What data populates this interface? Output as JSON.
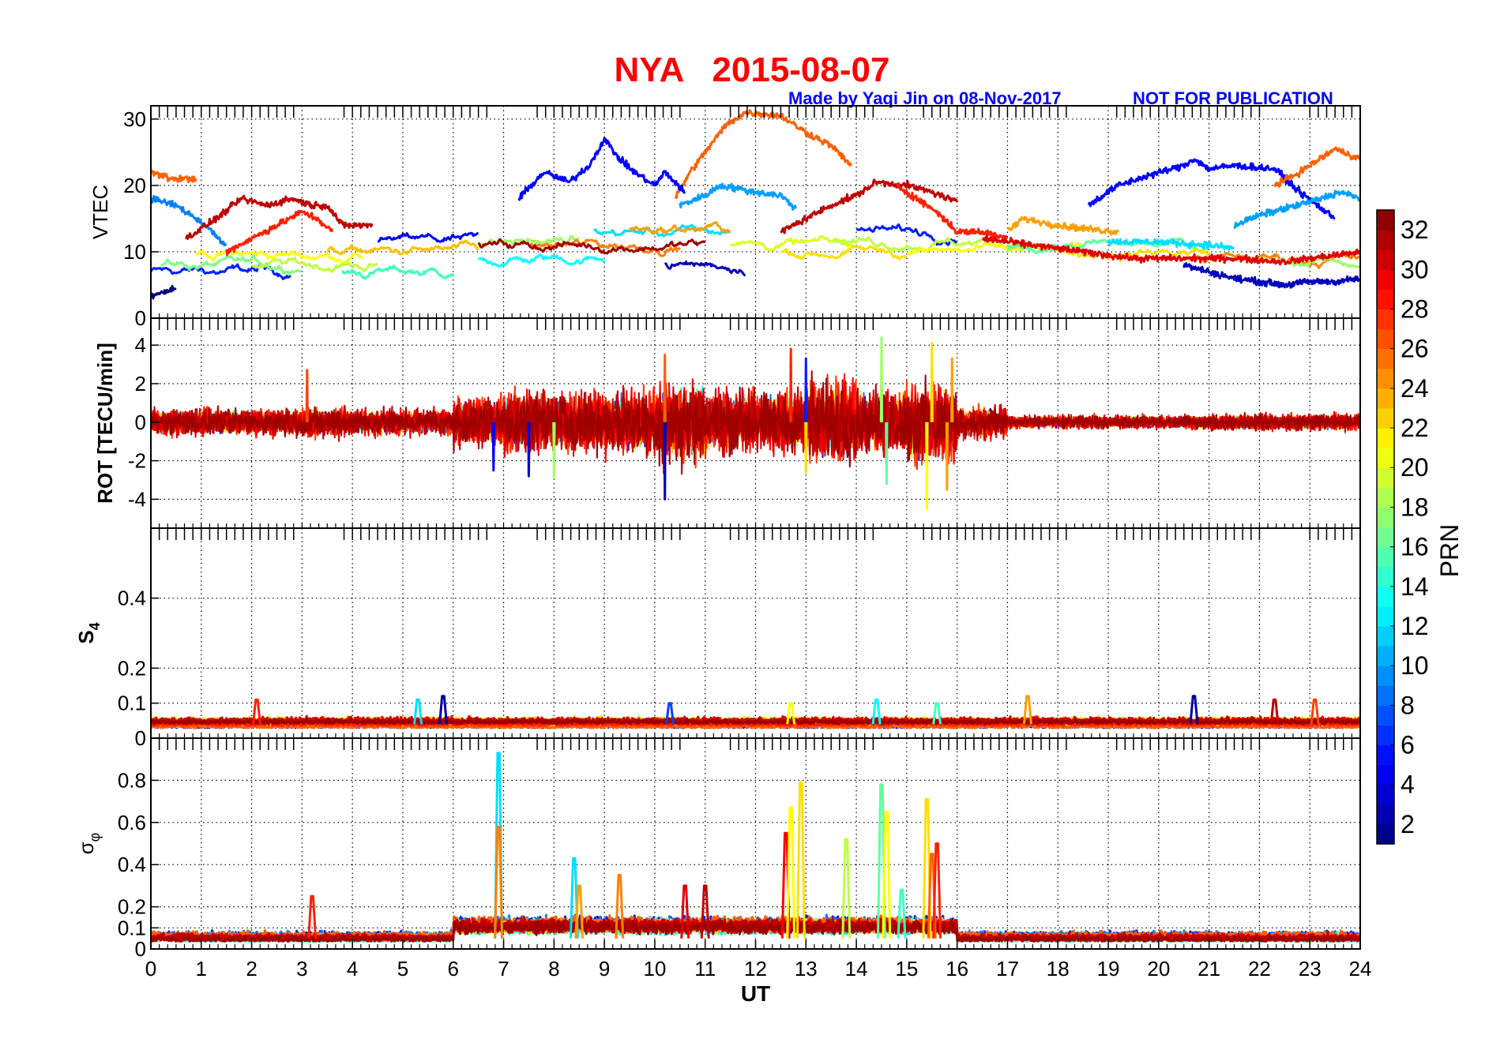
{
  "header": {
    "title": "NYA   2015-08-07",
    "credit": "Made by Yaqi Jin on 08-Nov-2017",
    "notice": "NOT FOR PUBLICATION"
  },
  "colorbar": {
    "label": "PRN",
    "range": [
      1,
      33
    ],
    "ticks": [
      "2",
      "4",
      "6",
      "8",
      "10",
      "12",
      "14",
      "16",
      "18",
      "20",
      "22",
      "24",
      "26",
      "28",
      "30",
      "32"
    ],
    "colormap": "jet"
  },
  "xaxis": {
    "label": "UT",
    "range": [
      0,
      24
    ],
    "ticks": [
      "0",
      "1",
      "2",
      "3",
      "4",
      "5",
      "6",
      "7",
      "8",
      "9",
      "10",
      "11",
      "12",
      "13",
      "14",
      "15",
      "16",
      "17",
      "18",
      "19",
      "20",
      "21",
      "22",
      "23",
      "24"
    ]
  },
  "chart_data": [
    {
      "type": "line",
      "name": "vtec",
      "ylabel": "VTEC",
      "ylim": [
        0,
        32
      ],
      "yticks": [
        0,
        10,
        20,
        30
      ],
      "yticklabels": [
        "0",
        "10",
        "20",
        "30"
      ],
      "grid": true,
      "tracks": [
        {
          "prn": 26,
          "points": [
            [
              10.4,
              18
            ],
            [
              10.7,
              22
            ],
            [
              11.0,
              25
            ],
            [
              11.4,
              29
            ],
            [
              11.8,
              31
            ],
            [
              12.5,
              30.5
            ],
            [
              13.0,
              28
            ],
            [
              13.5,
              26
            ],
            [
              13.9,
              23
            ]
          ]
        },
        {
          "prn": 5,
          "points": [
            [
              7.3,
              18
            ],
            [
              7.8,
              22
            ],
            [
              8.3,
              20.5
            ],
            [
              8.7,
              23
            ],
            [
              9.0,
              27
            ],
            [
              9.3,
              24
            ],
            [
              9.6,
              22
            ],
            [
              10.0,
              20
            ],
            [
              10.2,
              22
            ],
            [
              10.6,
              19
            ]
          ]
        },
        {
          "prn": 10,
          "points": [
            [
              10.5,
              17
            ],
            [
              11.0,
              18.5
            ],
            [
              11.3,
              20
            ],
            [
              12.0,
              19
            ],
            [
              12.5,
              18.5
            ],
            [
              12.8,
              16.5
            ]
          ]
        },
        {
          "prn": 5,
          "points": [
            [
              18.6,
              17
            ],
            [
              19.2,
              20
            ],
            [
              19.8,
              21.5
            ],
            [
              20.5,
              23
            ],
            [
              20.7,
              24
            ],
            [
              21.0,
              22.5
            ],
            [
              21.5,
              23
            ],
            [
              22.3,
              22.5
            ],
            [
              22.8,
              19
            ],
            [
              23.5,
              15
            ]
          ]
        },
        {
          "prn": 10,
          "points": [
            [
              21.5,
              14
            ],
            [
              22.0,
              15.5
            ],
            [
              22.5,
              16.5
            ],
            [
              23.0,
              17.5
            ],
            [
              23.6,
              19
            ],
            [
              24.0,
              18
            ]
          ]
        },
        {
          "prn": 26,
          "points": [
            [
              22.3,
              20
            ],
            [
              22.8,
              22
            ],
            [
              23.2,
              24
            ],
            [
              23.5,
              25.5
            ],
            [
              24.0,
              24
            ]
          ]
        },
        {
          "prn": 26,
          "points": [
            [
              0.0,
              22
            ],
            [
              0.4,
              21
            ],
            [
              0.9,
              21
            ]
          ]
        },
        {
          "prn": 9,
          "points": [
            [
              0.0,
              18
            ],
            [
              0.5,
              17
            ],
            [
              1.0,
              14.5
            ],
            [
              1.5,
              11
            ]
          ]
        },
        {
          "prn": 31,
          "points": [
            [
              0.7,
              12
            ],
            [
              1.3,
              15
            ],
            [
              1.8,
              18
            ],
            [
              2.3,
              17
            ],
            [
              2.8,
              18
            ],
            [
              3.2,
              17
            ],
            [
              3.5,
              17
            ],
            [
              3.8,
              14
            ],
            [
              4.4,
              14
            ]
          ]
        },
        {
          "prn": 28,
          "points": [
            [
              1.5,
              10
            ],
            [
              2.0,
              12
            ],
            [
              2.5,
              14
            ],
            [
              3.0,
              16
            ],
            [
              3.3,
              15
            ],
            [
              3.6,
              13
            ]
          ]
        },
        {
          "prn": 31,
          "points": [
            [
              12.5,
              13
            ],
            [
              13.0,
              15
            ],
            [
              13.5,
              17
            ],
            [
              14.0,
              18.5
            ],
            [
              14.4,
              20.5
            ],
            [
              15.0,
              20
            ],
            [
              15.5,
              19
            ],
            [
              16.0,
              17.5
            ]
          ]
        },
        {
          "prn": 28,
          "points": [
            [
              14.8,
              20
            ],
            [
              15.2,
              18
            ],
            [
              15.6,
              16
            ],
            [
              16.0,
              13
            ],
            [
              16.5,
              13
            ],
            [
              17.0,
              12
            ]
          ]
        },
        {
          "prn": 1,
          "points": [
            [
              0.0,
              3.5
            ],
            [
              0.5,
              4.5
            ]
          ]
        },
        {
          "prn": 3,
          "points": [
            [
              20.5,
              8
            ],
            [
              21.0,
              7
            ],
            [
              21.5,
              6
            ],
            [
              22.0,
              5.5
            ],
            [
              22.5,
              5
            ],
            [
              23.0,
              5.5
            ],
            [
              23.5,
              5.5
            ],
            [
              24.0,
              6
            ]
          ]
        },
        {
          "prn": 24,
          "points": [
            [
              17.0,
              13
            ],
            [
              17.3,
              15
            ],
            [
              18.0,
              14
            ],
            [
              18.5,
              13.5
            ],
            [
              19.2,
              13
            ]
          ]
        },
        {
          "prn": 12,
          "points": [
            [
              19.0,
              11.5
            ],
            [
              20.0,
              11.5
            ],
            [
              21.0,
              11
            ],
            [
              21.5,
              10.5
            ]
          ]
        },
        {
          "prn": 30,
          "points": [
            [
              16.5,
              12
            ],
            [
              17.5,
              11
            ],
            [
              18.5,
              10
            ],
            [
              19.5,
              9
            ],
            [
              20.5,
              9
            ],
            [
              21.5,
              9
            ],
            [
              22.5,
              8.5
            ],
            [
              23.5,
              9.5
            ],
            [
              24.0,
              10
            ]
          ]
        }
      ],
      "background_tracks": [
        {
          "prn": 6,
          "start": 0.0,
          "end": 2.8,
          "level": 7
        },
        {
          "prn": 17,
          "start": 0.2,
          "end": 3.0,
          "level": 8
        },
        {
          "prn": 21,
          "start": 0.9,
          "end": 4.2,
          "level": 9.5
        },
        {
          "prn": 19,
          "start": 2.0,
          "end": 4.5,
          "level": 8
        },
        {
          "prn": 15,
          "start": 3.8,
          "end": 6.0,
          "level": 7
        },
        {
          "prn": 23,
          "start": 3.5,
          "end": 6.5,
          "level": 10
        },
        {
          "prn": 5,
          "start": 4.5,
          "end": 6.5,
          "level": 11.5
        },
        {
          "prn": 13,
          "start": 6.5,
          "end": 9.0,
          "level": 9
        },
        {
          "prn": 18,
          "start": 6.5,
          "end": 8.5,
          "level": 11.5
        },
        {
          "prn": 25,
          "start": 7.5,
          "end": 10.5,
          "level": 11
        },
        {
          "prn": 32,
          "start": 6.5,
          "end": 11.0,
          "level": 11
        },
        {
          "prn": 12,
          "start": 8.8,
          "end": 11.5,
          "level": 13
        },
        {
          "prn": 24,
          "start": 9.5,
          "end": 11.5,
          "level": 13.5
        },
        {
          "prn": 3,
          "start": 10.2,
          "end": 11.8,
          "level": 8
        },
        {
          "prn": 20,
          "start": 11.5,
          "end": 14.0,
          "level": 11
        },
        {
          "prn": 22,
          "start": 12.5,
          "end": 15.0,
          "level": 10
        },
        {
          "prn": 6,
          "start": 14.0,
          "end": 16.0,
          "level": 13
        },
        {
          "prn": 19,
          "start": 13.5,
          "end": 17.5,
          "level": 11.5
        },
        {
          "prn": 21,
          "start": 15.0,
          "end": 18.5,
          "level": 10
        },
        {
          "prn": 16,
          "start": 17.0,
          "end": 21.0,
          "level": 11
        },
        {
          "prn": 22,
          "start": 18.0,
          "end": 21.0,
          "level": 10
        },
        {
          "prn": 25,
          "start": 20.5,
          "end": 24.0,
          "level": 9
        },
        {
          "prn": 18,
          "start": 22.0,
          "end": 24.0,
          "level": 8.5
        }
      ]
    },
    {
      "type": "line",
      "name": "rot",
      "ylabel": "ROT [TECU/min]",
      "ylim": [
        -5.5,
        5.4
      ],
      "yticks": [
        -4,
        -2,
        0,
        2,
        4
      ],
      "yticklabels": [
        "-4",
        "-2",
        "0",
        "2",
        "4"
      ],
      "grid": true,
      "hourly_amplitude": [
        0.8,
        0.8,
        0.8,
        0.9,
        0.8,
        0.8,
        1.5,
        1.8,
        1.8,
        2.0,
        2.5,
        2.0,
        1.8,
        2.5,
        2.0,
        2.5,
        1.0,
        0.4,
        0.4,
        0.4,
        0.4,
        0.5,
        0.5,
        0.5
      ],
      "spikes": [
        [
          3.1,
          2.7,
          27
        ],
        [
          6.8,
          -2.5,
          5
        ],
        [
          7.5,
          -2.8,
          4
        ],
        [
          8.0,
          -2.9,
          18
        ],
        [
          10.2,
          -4.0,
          3
        ],
        [
          10.2,
          3.5,
          26
        ],
        [
          12.7,
          3.8,
          28
        ],
        [
          13.0,
          3.3,
          6
        ],
        [
          13.0,
          -2.6,
          22
        ],
        [
          14.5,
          4.4,
          18
        ],
        [
          14.6,
          -3.2,
          16
        ],
        [
          15.4,
          -4.5,
          21
        ],
        [
          15.5,
          4.1,
          22
        ],
        [
          15.8,
          -3.5,
          24
        ],
        [
          15.9,
          3.3,
          24
        ]
      ]
    },
    {
      "type": "line",
      "name": "s4",
      "ylabel": "S4",
      "ylim": [
        0,
        0.6
      ],
      "yticks": [
        0,
        0.1,
        0.2,
        0.4
      ],
      "yticklabels": [
        "0",
        "0.1",
        "0.2",
        "0.4"
      ],
      "grid": true,
      "baseline": 0.04,
      "spikes": [
        [
          2.1,
          0.11,
          28
        ],
        [
          5.3,
          0.11,
          12
        ],
        [
          5.8,
          0.12,
          2
        ],
        [
          10.3,
          0.1,
          7
        ],
        [
          12.7,
          0.1,
          21
        ],
        [
          14.4,
          0.11,
          13
        ],
        [
          15.6,
          0.1,
          15
        ],
        [
          17.4,
          0.12,
          24
        ],
        [
          20.7,
          0.12,
          2
        ],
        [
          22.3,
          0.11,
          31
        ],
        [
          23.1,
          0.11,
          27
        ]
      ]
    },
    {
      "type": "line",
      "name": "sigma-phi",
      "ylabel": "σφ",
      "ylim": [
        0,
        1.0
      ],
      "yticks": [
        0,
        0.1,
        0.2,
        0.4,
        0.6,
        0.8
      ],
      "yticklabels": [
        "0",
        "0.1",
        "0.2",
        "0.4",
        "0.6",
        "0.8"
      ],
      "grid": true,
      "baseline": 0.05,
      "spikes": [
        [
          6.9,
          0.93,
          12
        ],
        [
          6.9,
          0.58,
          25
        ],
        [
          8.4,
          0.43,
          12
        ],
        [
          8.5,
          0.3,
          24
        ],
        [
          3.2,
          0.25,
          28
        ],
        [
          9.3,
          0.35,
          25
        ],
        [
          10.6,
          0.3,
          30
        ],
        [
          11.0,
          0.3,
          31
        ],
        [
          12.6,
          0.55,
          29
        ],
        [
          12.7,
          0.67,
          21
        ],
        [
          12.9,
          0.79,
          22
        ],
        [
          13.8,
          0.52,
          19
        ],
        [
          14.5,
          0.78,
          16
        ],
        [
          14.6,
          0.65,
          21
        ],
        [
          14.9,
          0.28,
          15
        ],
        [
          15.4,
          0.71,
          22
        ],
        [
          15.5,
          0.45,
          26
        ],
        [
          15.6,
          0.5,
          28
        ]
      ],
      "elevated_window": [
        6.0,
        16.0
      ]
    }
  ]
}
